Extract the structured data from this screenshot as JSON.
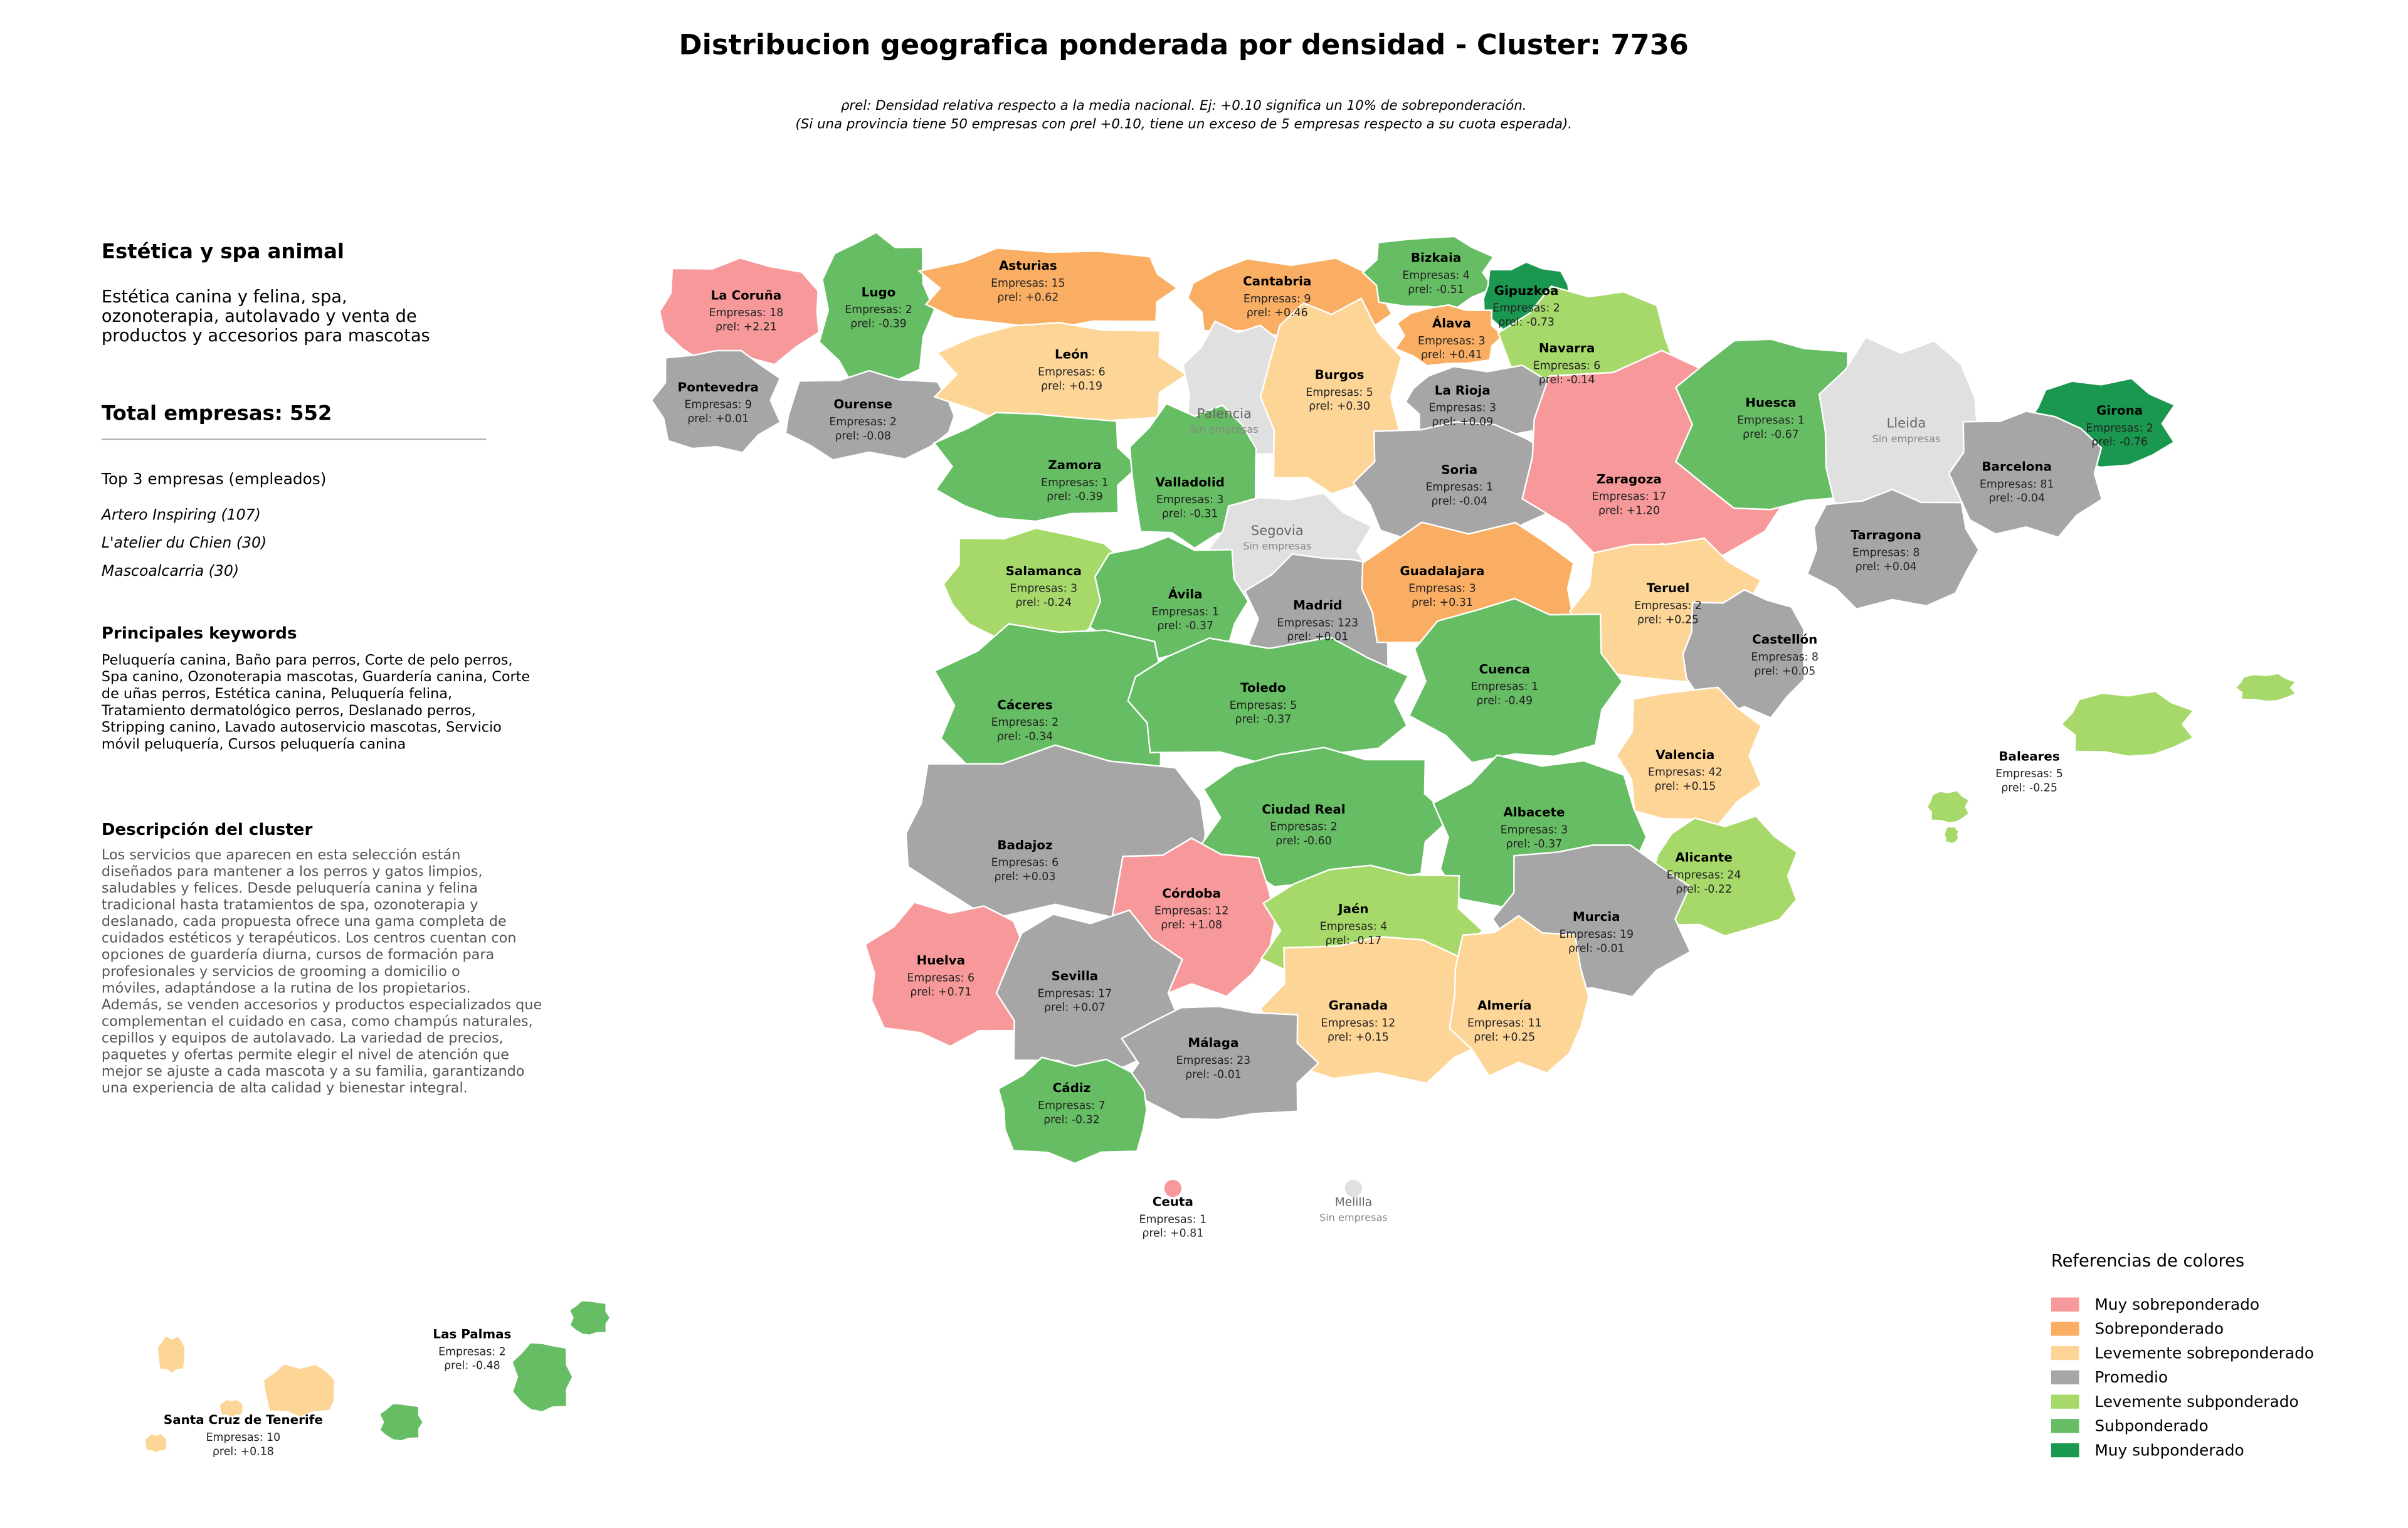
{
  "title": "Distribucion geografica ponderada por densidad - Cluster: 7736",
  "subtitle": [
    "ρrel: Densidad relativa respecto a la media nacional. Ej: +0.10 significa un 10% de sobreponderación.",
    "(Si una provincia tiene 50 empresas con ρrel +0.10, tiene un exceso de 5 empresas respecto a su cuota esperada)."
  ],
  "sidebar": {
    "heading": "Estética y spa animal",
    "description": [
      "Estética canina y felina, spa,",
      "ozonoterapia, autolavado y venta de",
      "productos y accesorios para mascotas"
    ],
    "total": "Total empresas: 552",
    "top_title": "Top 3 empresas (empleados)",
    "top": [
      "Artero Inspiring (107)",
      "L'atelier du Chien (30)",
      "Mascoalcarria (30)"
    ],
    "keywords_title": "Principales keywords",
    "keywords": [
      "Peluquería canina, Baño para perros, Corte de pelo perros,",
      "Spa canino, Ozonoterapia mascotas, Guardería canina, Corte",
      "de uñas perros, Estética canina, Peluquería felina,",
      "Tratamiento dermatológico perros, Deslanado perros,",
      "Stripping canino, Lavado autoservicio mascotas, Servicio",
      "móvil peluquería, Cursos peluquería canina"
    ],
    "cluster_title": "Descripción del cluster",
    "cluster_text": [
      "Los servicios que aparecen en esta selección están",
      "diseñados para mantener a los perros y gatos limpios,",
      "saludables y felices. Desde peluquería canina y felina",
      "tradicional hasta tratamientos de spa, ozonoterapia y",
      "deslanado, cada propuesta ofrece una gama completa de",
      "cuidados estéticos y terapéuticos. Los centros cuentan con",
      "opciones de guardería diurna, cursos de formación para",
      "profesionales y servicios de grooming a domicilio o",
      "móviles, adaptándose a la rutina de los propietarios.",
      "Además, se venden accesorios y productos especializados que",
      "complementan el cuidado en casa, como champús naturales,",
      "cepillos y equipos de autolavado. La variedad de precios,",
      "paquetes y ofertas permite elegir el nivel de atención que",
      "mejor se ajuste a cada mascota y a su familia, garantizando",
      "una experiencia de alta calidad y bienestar integral."
    ]
  },
  "legend": {
    "title": "Referencias de colores",
    "items": [
      {
        "label": "Muy sobreponderado",
        "color": "#f7999a"
      },
      {
        "label": "Sobreponderado",
        "color": "#f9ae63"
      },
      {
        "label": "Levemente sobreponderado",
        "color": "#fdd597"
      },
      {
        "label": "Promedio",
        "color": "#a6a6a6"
      },
      {
        "label": "Levemente subponderado",
        "color": "#a6d96a"
      },
      {
        "label": "Subponderado",
        "color": "#66bd63"
      },
      {
        "label": "Muy subponderado",
        "color": "#1a9850"
      }
    ],
    "no_data_color": "#e0e0e0"
  },
  "provinces": [
    {
      "name": "La Coruña",
      "empresas": "Empresas: 18",
      "density": "ρrel: +2.21",
      "category": "Muy sobreponderado"
    },
    {
      "name": "Lugo",
      "empresas": "Empresas: 2",
      "density": "ρrel: -0.39",
      "category": "Subponderado"
    },
    {
      "name": "Asturias",
      "empresas": "Empresas: 15",
      "density": "ρrel: +0.62",
      "category": "Sobreponderado"
    },
    {
      "name": "Cantabria",
      "empresas": "Empresas: 9",
      "density": "ρrel: +0.46",
      "category": "Sobreponderado"
    },
    {
      "name": "Bizkaia",
      "empresas": "Empresas: 4",
      "density": "ρrel: -0.51",
      "category": "Subponderado"
    },
    {
      "name": "Gipuzkoa",
      "empresas": "Empresas: 2",
      "density": "ρrel: -0.73",
      "category": "Muy subponderado"
    },
    {
      "name": "Álava",
      "empresas": "Empresas: 3",
      "density": "ρrel: +0.41",
      "category": "Sobreponderado"
    },
    {
      "name": "Navarra",
      "empresas": "Empresas: 6",
      "density": "ρrel: -0.14",
      "category": "Levemente subponderado"
    },
    {
      "name": "La Rioja",
      "empresas": "Empresas: 3",
      "density": "ρrel: +0.09",
      "category": "Promedio"
    },
    {
      "name": "Pontevedra",
      "empresas": "Empresas: 9",
      "density": "ρrel: +0.01",
      "category": "Promedio"
    },
    {
      "name": "Ourense",
      "empresas": "Empresas: 2",
      "density": "ρrel: -0.08",
      "category": "Promedio"
    },
    {
      "name": "León",
      "empresas": "Empresas: 6",
      "density": "ρrel: +0.19",
      "category": "Levemente sobreponderado"
    },
    {
      "name": "Palencia",
      "note": "Sin empresas"
    },
    {
      "name": "Burgos",
      "empresas": "Empresas: 5",
      "density": "ρrel: +0.30",
      "category": "Levemente sobreponderado"
    },
    {
      "name": "Soria",
      "empresas": "Empresas: 1",
      "density": "ρrel: -0.04",
      "category": "Promedio"
    },
    {
      "name": "Zaragoza",
      "empresas": "Empresas: 17",
      "density": "ρrel: +1.20",
      "category": "Muy sobreponderado"
    },
    {
      "name": "Huesca",
      "empresas": "Empresas: 1",
      "density": "ρrel: -0.67",
      "category": "Subponderado"
    },
    {
      "name": "Lleida",
      "note": "Sin empresas"
    },
    {
      "name": "Girona",
      "empresas": "Empresas: 2",
      "density": "ρrel: -0.76",
      "category": "Muy subponderado"
    },
    {
      "name": "Barcelona",
      "empresas": "Empresas: 81",
      "density": "ρrel: -0.04",
      "category": "Promedio"
    },
    {
      "name": "Tarragona",
      "empresas": "Empresas: 8",
      "density": "ρrel: +0.04",
      "category": "Promedio"
    },
    {
      "name": "Zamora",
      "empresas": "Empresas: 1",
      "density": "ρrel: -0.39",
      "category": "Subponderado"
    },
    {
      "name": "Valladolid",
      "empresas": "Empresas: 3",
      "density": "ρrel: -0.31",
      "category": "Subponderado"
    },
    {
      "name": "Segovia",
      "note": "Sin empresas"
    },
    {
      "name": "Salamanca",
      "empresas": "Empresas: 3",
      "density": "ρrel: -0.24",
      "category": "Levemente subponderado"
    },
    {
      "name": "Ávila",
      "empresas": "Empresas: 1",
      "density": "ρrel: -0.37",
      "category": "Subponderado"
    },
    {
      "name": "Madrid",
      "empresas": "Empresas: 123",
      "density": "ρrel: +0.01",
      "category": "Promedio"
    },
    {
      "name": "Guadalajara",
      "empresas": "Empresas: 3",
      "density": "ρrel: +0.31",
      "category": "Sobreponderado"
    },
    {
      "name": "Teruel",
      "empresas": "Empresas: 2",
      "density": "ρrel: +0.25",
      "category": "Levemente sobreponderado"
    },
    {
      "name": "Castellón",
      "empresas": "Empresas: 8",
      "density": "ρrel: +0.05",
      "category": "Promedio"
    },
    {
      "name": "Cuenca",
      "empresas": "Empresas: 1",
      "density": "ρrel: -0.49",
      "category": "Subponderado"
    },
    {
      "name": "Cáceres",
      "empresas": "Empresas: 2",
      "density": "ρrel: -0.34",
      "category": "Subponderado"
    },
    {
      "name": "Toledo",
      "empresas": "Empresas: 5",
      "density": "ρrel: -0.37",
      "category": "Subponderado"
    },
    {
      "name": "Valencia",
      "empresas": "Empresas: 42",
      "density": "ρrel: +0.15",
      "category": "Levemente sobreponderado"
    },
    {
      "name": "Badajoz",
      "empresas": "Empresas: 6",
      "density": "ρrel: +0.03",
      "category": "Promedio"
    },
    {
      "name": "Ciudad Real",
      "empresas": "Empresas: 2",
      "density": "ρrel: -0.60",
      "category": "Subponderado"
    },
    {
      "name": "Albacete",
      "empresas": "Empresas: 3",
      "density": "ρrel: -0.37",
      "category": "Subponderado"
    },
    {
      "name": "Alicante",
      "empresas": "Empresas: 24",
      "density": "ρrel: -0.22",
      "category": "Levemente subponderado"
    },
    {
      "name": "Murcia",
      "empresas": "Empresas: 19",
      "density": "ρrel: -0.01",
      "category": "Promedio"
    },
    {
      "name": "Córdoba",
      "empresas": "Empresas: 12",
      "density": "ρrel: +1.08",
      "category": "Muy sobreponderado"
    },
    {
      "name": "Jaén",
      "empresas": "Empresas: 4",
      "density": "ρrel: -0.17",
      "category": "Levemente subponderado"
    },
    {
      "name": "Huelva",
      "empresas": "Empresas: 6",
      "density": "ρrel: +0.71",
      "category": "Muy sobreponderado"
    },
    {
      "name": "Sevilla",
      "empresas": "Empresas: 17",
      "density": "ρrel: +0.07",
      "category": "Promedio"
    },
    {
      "name": "Granada",
      "empresas": "Empresas: 12",
      "density": "ρrel: +0.15",
      "category": "Levemente sobreponderado"
    },
    {
      "name": "Almería",
      "empresas": "Empresas: 11",
      "density": "ρrel: +0.25",
      "category": "Levemente sobreponderado"
    },
    {
      "name": "Málaga",
      "empresas": "Empresas: 23",
      "density": "ρrel: -0.01",
      "category": "Promedio"
    },
    {
      "name": "Cádiz",
      "empresas": "Empresas: 7",
      "density": "ρrel: -0.32",
      "category": "Subponderado"
    },
    {
      "name": "Baleares",
      "empresas": "Empresas: 5",
      "density": "ρrel: -0.25",
      "category": "Levemente subponderado"
    },
    {
      "name": "Ceuta",
      "empresas": "Empresas: 1",
      "density": "ρrel: +0.81",
      "category": "Muy sobreponderado"
    },
    {
      "name": "Melilla",
      "note": "Sin empresas"
    },
    {
      "name": "Las Palmas",
      "empresas": "Empresas: 2",
      "density": "ρrel: -0.48",
      "category": "Subponderado"
    },
    {
      "name": "Santa Cruz de Tenerife",
      "empresas": "Empresas: 10",
      "density": "ρrel: +0.18",
      "category": "Levemente sobreponderado"
    }
  ]
}
